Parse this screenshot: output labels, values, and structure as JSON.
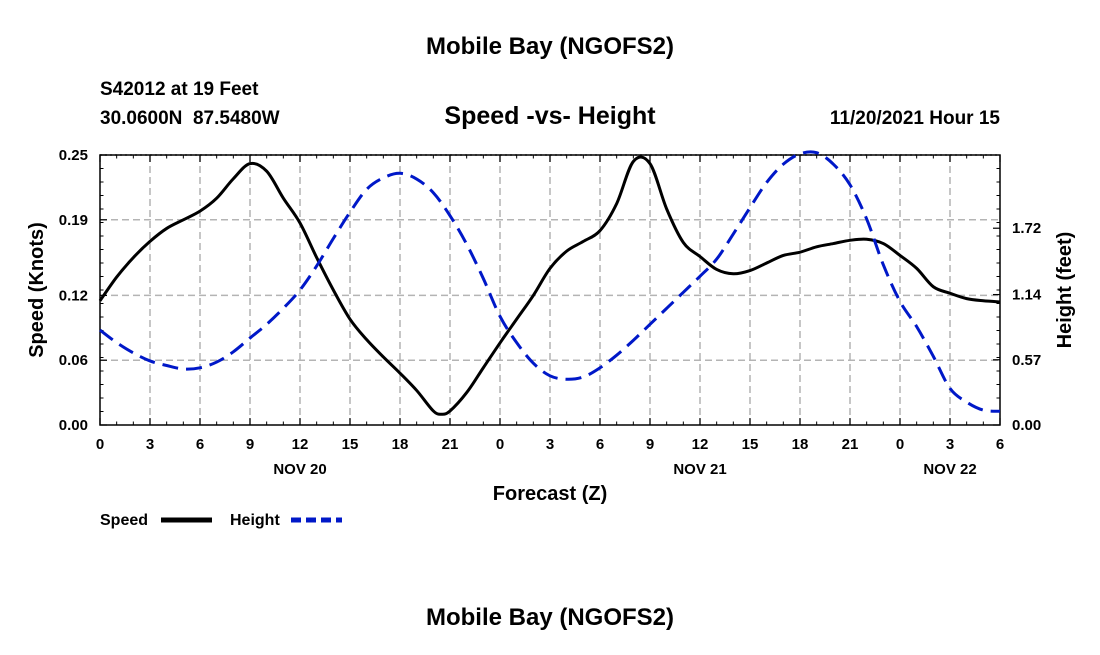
{
  "page": {
    "title": "Mobile Bay (NGOFS2)",
    "station_line": "S42012 at 19 Feet",
    "coord_line": "30.0600N  87.5480W",
    "chart_title": "Speed -vs- Height",
    "timestamp": "11/20/2021 Hour 15",
    "footer_title": "Mobile Bay (NGOFS2)"
  },
  "chart_data": {
    "type": "line",
    "title": "Speed -vs- Height",
    "xlabel": "Forecast (Z)",
    "ylabel": "Speed (Knots)",
    "y2label": "Height (feet)",
    "x_unit": "hours from 11/20/2021 00Z",
    "x_range": [
      0,
      54
    ],
    "x_ticks": [
      0,
      3,
      6,
      9,
      12,
      15,
      18,
      21,
      24,
      27,
      30,
      33,
      36,
      39,
      42,
      45,
      48,
      51,
      54
    ],
    "x_tick_labels": [
      "0",
      "3",
      "6",
      "9",
      "12",
      "15",
      "18",
      "21",
      "0",
      "3",
      "6",
      "9",
      "12",
      "15",
      "18",
      "21",
      "0",
      "3",
      "6"
    ],
    "date_labels": [
      {
        "at": 12,
        "label": "NOV 20"
      },
      {
        "at": 36,
        "label": "NOV 21"
      },
      {
        "at": 51,
        "label": "NOV 22"
      }
    ],
    "ylim": [
      0,
      0.25
    ],
    "y_ticks": [
      0.0,
      0.06,
      0.12,
      0.19,
      0.25
    ],
    "y_tick_labels": [
      "0.00",
      "0.06",
      "0.12",
      "0.19",
      "0.25"
    ],
    "y2lim": [
      0,
      2.36
    ],
    "y2_ticks": [
      0.0,
      0.57,
      1.14,
      1.72
    ],
    "y2_tick_labels": [
      "0.00",
      "0.57",
      "1.14",
      "1.72"
    ],
    "grid": true,
    "legend_position": "bottom-left",
    "series": [
      {
        "name": "Speed",
        "axis": "left",
        "color": "#000000",
        "style": "solid",
        "x": [
          0,
          1,
          2,
          3,
          4,
          5,
          6,
          7,
          8,
          9,
          10,
          11,
          12,
          13,
          14,
          15,
          16,
          17,
          18,
          19,
          20,
          20.5,
          21,
          22,
          23,
          24,
          25,
          26,
          27,
          28,
          29,
          30,
          31,
          32,
          33,
          34,
          35,
          36,
          37,
          38,
          39,
          40,
          41,
          42,
          43,
          44,
          45,
          46,
          47,
          48,
          49,
          50,
          51,
          52,
          53,
          54
        ],
        "values": [
          0.115,
          0.137,
          0.155,
          0.17,
          0.182,
          0.19,
          0.198,
          0.21,
          0.228,
          0.242,
          0.235,
          0.21,
          0.187,
          0.155,
          0.125,
          0.098,
          0.079,
          0.063,
          0.048,
          0.032,
          0.013,
          0.01,
          0.013,
          0.03,
          0.053,
          0.076,
          0.098,
          0.12,
          0.145,
          0.161,
          0.17,
          0.18,
          0.205,
          0.244,
          0.242,
          0.2,
          0.169,
          0.156,
          0.144,
          0.14,
          0.143,
          0.15,
          0.157,
          0.16,
          0.165,
          0.168,
          0.171,
          0.172,
          0.168,
          0.157,
          0.145,
          0.128,
          0.122,
          0.117,
          0.115,
          0.114
        ]
      },
      {
        "name": "Height",
        "axis": "right",
        "color": "#0018c8",
        "style": "dashed",
        "x": [
          0,
          1,
          2,
          3,
          4,
          5,
          6,
          7,
          8,
          9,
          10,
          11,
          12,
          13,
          14,
          15,
          16,
          17,
          18,
          19,
          20,
          21,
          22,
          23,
          24,
          25,
          26,
          27,
          28,
          29,
          30,
          31,
          32,
          33,
          34,
          35,
          36,
          37,
          38,
          39,
          40,
          41,
          42,
          43,
          44,
          45,
          46,
          47,
          48,
          49,
          50,
          51,
          52,
          53,
          54
        ],
        "values": [
          0.83,
          0.72,
          0.63,
          0.56,
          0.52,
          0.49,
          0.5,
          0.55,
          0.64,
          0.76,
          0.88,
          1.02,
          1.18,
          1.39,
          1.63,
          1.86,
          2.06,
          2.16,
          2.2,
          2.15,
          2.03,
          1.83,
          1.58,
          1.28,
          0.95,
          0.72,
          0.54,
          0.43,
          0.4,
          0.42,
          0.5,
          0.61,
          0.74,
          0.88,
          1.02,
          1.16,
          1.3,
          1.45,
          1.67,
          1.9,
          2.12,
          2.28,
          2.37,
          2.38,
          2.28,
          2.1,
          1.8,
          1.4,
          1.08,
          0.86,
          0.6,
          0.32,
          0.2,
          0.13,
          0.12
        ]
      }
    ]
  },
  "legend": {
    "speed_label": "Speed",
    "height_label": "Height",
    "speed_color": "#000000",
    "height_color": "#0018c8"
  }
}
